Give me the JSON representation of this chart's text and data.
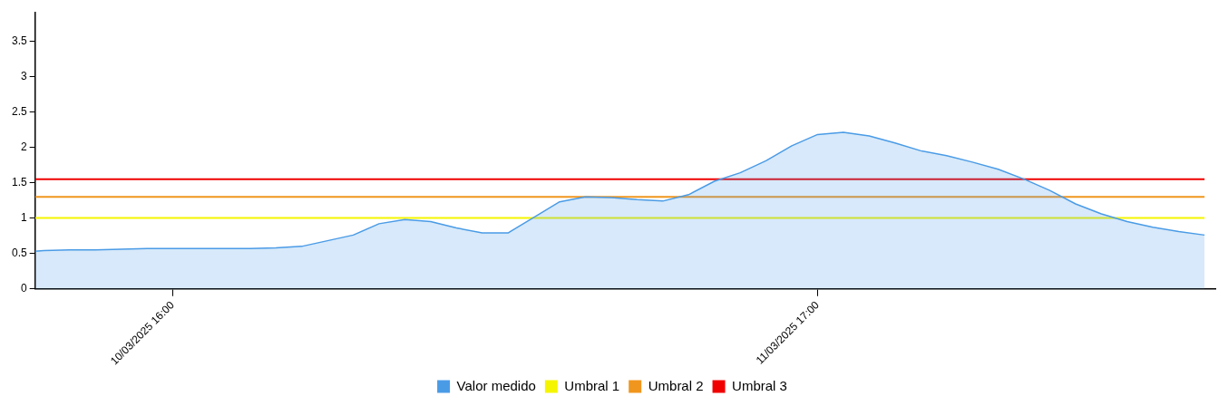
{
  "chart_data": {
    "type": "area",
    "legend": "bottom",
    "marker": "none",
    "x": [
      "2025-03-10T10:40",
      "2025-03-10T11:00",
      "2025-03-10T12:00",
      "2025-03-10T13:00",
      "2025-03-10T14:00",
      "2025-03-10T15:00",
      "2025-03-10T16:00",
      "2025-03-10T17:00",
      "2025-03-10T18:00",
      "2025-03-10T19:00",
      "2025-03-10T20:00",
      "2025-03-10T21:00",
      "2025-03-10T22:00",
      "2025-03-10T23:00",
      "2025-03-11T00:00",
      "2025-03-11T01:00",
      "2025-03-11T02:00",
      "2025-03-11T03:00",
      "2025-03-11T04:00",
      "2025-03-11T05:00",
      "2025-03-11T06:00",
      "2025-03-11T07:00",
      "2025-03-11T08:00",
      "2025-03-11T09:00",
      "2025-03-11T10:00",
      "2025-03-11T11:00",
      "2025-03-11T12:00",
      "2025-03-11T13:00",
      "2025-03-11T14:00",
      "2025-03-11T15:00",
      "2025-03-11T16:00",
      "2025-03-11T17:00",
      "2025-03-11T18:00",
      "2025-03-11T19:00",
      "2025-03-11T20:00",
      "2025-03-11T21:00",
      "2025-03-11T22:00",
      "2025-03-11T23:00",
      "2025-03-12T00:00",
      "2025-03-12T01:00",
      "2025-03-12T02:00",
      "2025-03-12T03:00",
      "2025-03-12T04:00",
      "2025-03-12T05:00",
      "2025-03-12T06:00",
      "2025-03-12T07:00",
      "2025-03-12T08:00"
    ],
    "xlim": [
      "2025-03-10T10:40",
      "2025-03-12T08:25"
    ],
    "xticks": [
      {
        "value": "2025-03-10T16:00",
        "label": "10/03/2025 16:00"
      },
      {
        "value": "2025-03-11T17:00",
        "label": "11/03/2025 17:00"
      }
    ],
    "ylim": [
      0,
      3.9
    ],
    "yticks": [
      0,
      0.5,
      1,
      1.5,
      2,
      2.5,
      3,
      3.5
    ],
    "series": [
      {
        "name": "Valor medido",
        "type": "area",
        "color": "#4a9be6",
        "values": [
          0.53,
          0.54,
          0.55,
          0.55,
          0.56,
          0.57,
          0.57,
          0.57,
          0.57,
          0.57,
          0.58,
          0.6,
          0.68,
          0.76,
          0.92,
          0.98,
          0.95,
          0.86,
          0.79,
          0.79,
          1.01,
          1.23,
          1.3,
          1.29,
          1.26,
          1.24,
          1.33,
          1.52,
          1.64,
          1.81,
          2.02,
          2.18,
          2.21,
          2.16,
          2.06,
          1.95,
          1.88,
          1.79,
          1.69,
          1.55,
          1.39,
          1.2,
          1.06,
          0.95,
          0.87,
          0.81,
          0.76
        ]
      },
      {
        "name": "Umbral 1",
        "type": "line",
        "color": "#f5f500",
        "x": [
          "2025-03-10T10:40",
          "2025-03-12T08:00"
        ],
        "values": [
          1,
          1
        ]
      },
      {
        "name": "Umbral 2",
        "type": "line",
        "color": "#f0961e",
        "x": [
          "2025-03-10T10:40",
          "2025-03-12T08:00"
        ],
        "values": [
          1.3,
          1.3
        ]
      },
      {
        "name": "Umbral 3",
        "type": "line",
        "color": "#f00000",
        "x": [
          "2025-03-10T10:40",
          "2025-03-12T08:00"
        ],
        "values": [
          1.55,
          1.55
        ]
      }
    ]
  }
}
